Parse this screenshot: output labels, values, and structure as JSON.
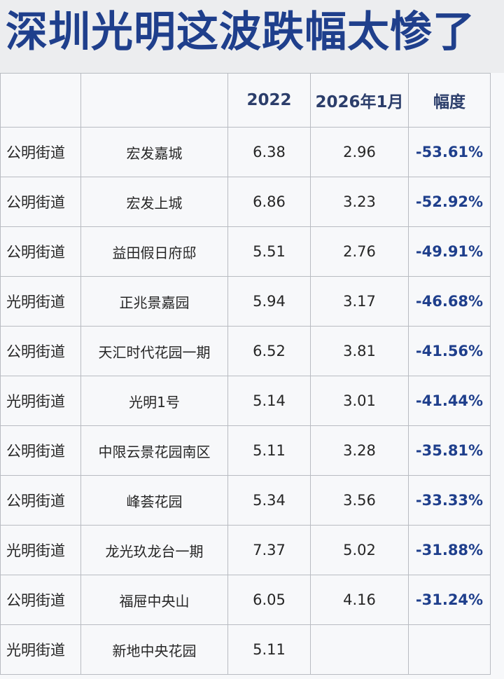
{
  "title": "深圳光明这波跌幅太惨了",
  "table": {
    "headers": [
      "",
      "",
      "2022",
      "2026年1月",
      "幅度"
    ],
    "rows": [
      {
        "district": "公明街道",
        "estate": "宏发嘉城",
        "y2022": "6.38",
        "y2026": "2.96",
        "change": "-53.61%"
      },
      {
        "district": "公明街道",
        "estate": "宏发上城",
        "y2022": "6.86",
        "y2026": "3.23",
        "change": "-52.92%"
      },
      {
        "district": "公明街道",
        "estate": "益田假日府邸",
        "y2022": "5.51",
        "y2026": "2.76",
        "change": "-49.91%"
      },
      {
        "district": "光明街道",
        "estate": "正兆景嘉园",
        "y2022": "5.94",
        "y2026": "3.17",
        "change": "-46.68%"
      },
      {
        "district": "公明街道",
        "estate": "天汇时代花园一期",
        "y2022": "6.52",
        "y2026": "3.81",
        "change": "-41.56%"
      },
      {
        "district": "光明街道",
        "estate": "光明1号",
        "y2022": "5.14",
        "y2026": "3.01",
        "change": "-41.44%"
      },
      {
        "district": "公明街道",
        "estate": "中限云景花园南区",
        "y2022": "5.11",
        "y2026": "3.28",
        "change": "-35.81%"
      },
      {
        "district": "公明街道",
        "estate": "峰荟花园",
        "y2022": "5.34",
        "y2026": "3.56",
        "change": "-33.33%"
      },
      {
        "district": "光明街道",
        "estate": "龙光玖龙台一期",
        "y2022": "7.37",
        "y2026": "5.02",
        "change": "-31.88%"
      },
      {
        "district": "公明街道",
        "estate": "福屉中央山",
        "y2022": "6.05",
        "y2026": "4.16",
        "change": "-31.24%"
      },
      {
        "district": "光明街道",
        "estate": "新地中央花园",
        "y2022": "5.11",
        "y2026": "",
        "change": ""
      }
    ]
  }
}
